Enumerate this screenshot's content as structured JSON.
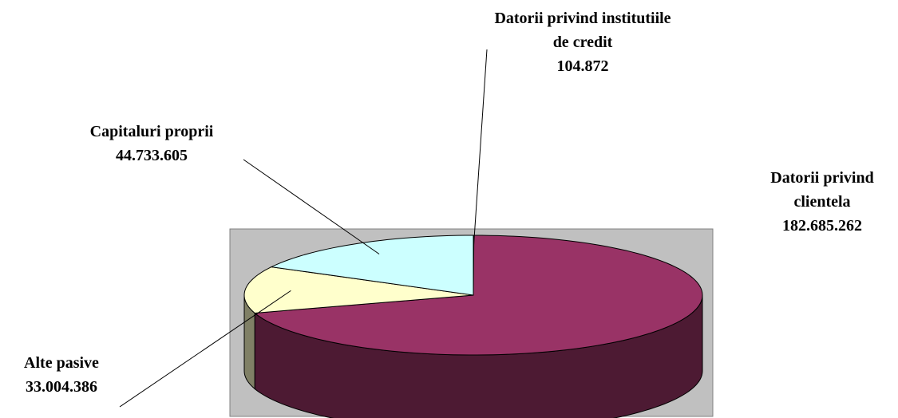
{
  "chart_data": {
    "type": "pie3d",
    "categories": [
      "Datorii privind institutiile de credit",
      "Datorii privind clientela",
      "Alte pasive",
      "Capitaluri proprii"
    ],
    "values": [
      104872,
      182685262,
      33004386,
      44733605
    ],
    "value_labels": [
      "104.872",
      "182.685.262",
      "33.004.386",
      "44.733.605"
    ],
    "colors": [
      "#9999ff",
      "#993366",
      "#ffffcc",
      "#ccffff"
    ]
  }
}
